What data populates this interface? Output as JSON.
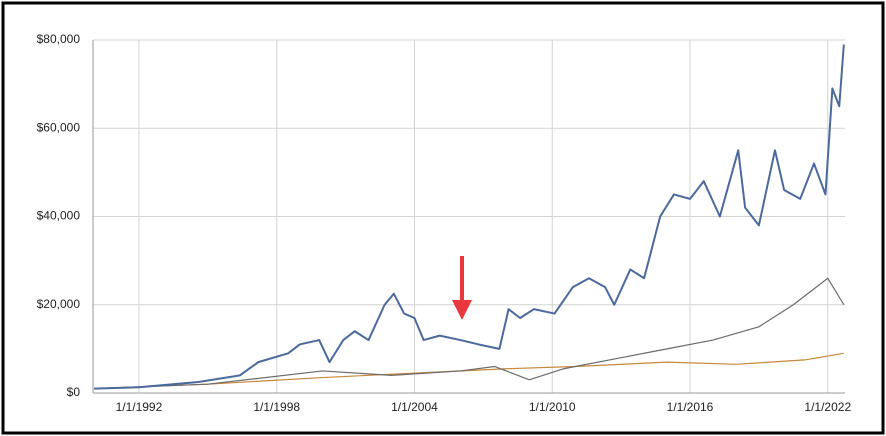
{
  "chart_data": {
    "type": "line",
    "xlim": [
      1990,
      2022.75
    ],
    "xticks": [
      {
        "value": 1992,
        "label": "1/1/1992"
      },
      {
        "value": 1998,
        "label": "1/1/1998"
      },
      {
        "value": 2004,
        "label": "1/1/2004"
      },
      {
        "value": 2010,
        "label": "1/1/2010"
      },
      {
        "value": 2016,
        "label": "1/1/2016"
      },
      {
        "value": 2022,
        "label": "1/1/2022"
      }
    ],
    "ylim": [
      0,
      80000
    ],
    "yticks": [
      {
        "value": 0,
        "label": "$0"
      },
      {
        "value": 20000,
        "label": "$20,000"
      },
      {
        "value": 40000,
        "label": "$40,000"
      },
      {
        "value": 60000,
        "label": "$60,000"
      },
      {
        "value": 80000,
        "label": "$80,000"
      }
    ],
    "grid": true,
    "series": [
      {
        "color": "#4a6a9e",
        "x": [
          1990.05,
          1992,
          1994.6,
          1996.4,
          1997.2,
          1998.5,
          1999,
          1999.85,
          2000.3,
          2000.9,
          2001.4,
          2002,
          2002.7,
          2003.1,
          2003.55,
          2004,
          2004.4,
          2005.1,
          2006,
          2006.8,
          2007.7,
          2008.1,
          2008.6,
          2009.2,
          2010.1,
          2010.9,
          2011.6,
          2012.3,
          2012.7,
          2013.4,
          2014,
          2014.7,
          2015.3,
          2016,
          2016.6,
          2017.3,
          2018.1,
          2018.4,
          2019,
          2019.7,
          2020.1,
          2020.8,
          2021.4,
          2021.9,
          2022.2,
          2022.5,
          2022.7
        ],
        "values": [
          1000,
          1300,
          2500,
          4000,
          7000,
          9000,
          11000,
          12000,
          7000,
          12000,
          14000,
          12000,
          20000,
          22500,
          18000,
          17000,
          12000,
          13000,
          12000,
          11000,
          10000,
          19000,
          17000,
          19000,
          18000,
          24000,
          26000,
          24000,
          20000,
          28000,
          26000,
          40000,
          45000,
          44000,
          48000,
          40000,
          55000,
          42000,
          38000,
          55000,
          46000,
          44000,
          52000,
          45000,
          69000,
          65000,
          79000
        ]
      },
      {
        "color": "#6b6b6b",
        "x": [
          1990.05,
          1995,
          2000,
          2003,
          2006,
          2007.5,
          2009,
          2010.5,
          2013,
          2015,
          2017,
          2019,
          2020.5,
          2022,
          2022.7
        ],
        "values": [
          1000,
          2000,
          5000,
          4000,
          5000,
          6000,
          3000,
          5500,
          8000,
          10000,
          12000,
          15000,
          20000,
          26000,
          20000
        ]
      },
      {
        "color": "#c8873a",
        "x": [
          1990.05,
          1995,
          2000,
          2004,
          2008,
          2011,
          2015,
          2018,
          2021,
          2022.7
        ],
        "values": [
          1000,
          2000,
          3500,
          4500,
          5500,
          6000,
          7000,
          6500,
          7500,
          9000
        ]
      }
    ]
  }
}
